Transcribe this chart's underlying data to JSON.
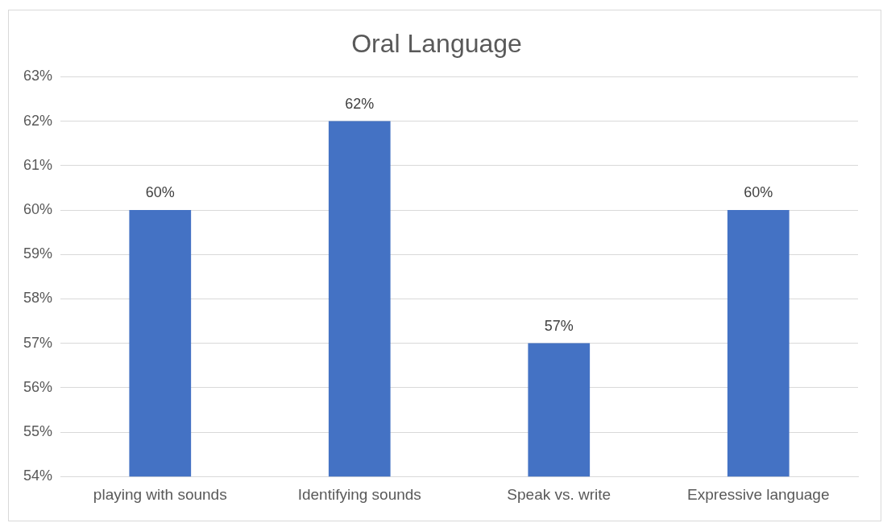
{
  "chart_data": {
    "type": "bar",
    "title": "Oral Language",
    "categories": [
      "playing with sounds",
      "Identifying sounds",
      "Speak vs. write",
      "Expressive language"
    ],
    "values": [
      60,
      62,
      57,
      60
    ],
    "color": "#4472c4",
    "ylim": [
      54,
      63
    ],
    "yticks": [
      {
        "value": 54,
        "label": "54%"
      },
      {
        "value": 55,
        "label": "55%"
      },
      {
        "value": 56,
        "label": "56%"
      },
      {
        "value": 57,
        "label": "57%"
      },
      {
        "value": 58,
        "label": "58%"
      },
      {
        "value": 59,
        "label": "59%"
      },
      {
        "value": 60,
        "label": "60%"
      },
      {
        "value": 61,
        "label": "61%"
      },
      {
        "value": 62,
        "label": "62%"
      },
      {
        "value": 63,
        "label": "63%"
      }
    ],
    "value_labels": [
      "60%",
      "62%",
      "57%",
      "60%"
    ],
    "grid": "y",
    "legend": false
  }
}
